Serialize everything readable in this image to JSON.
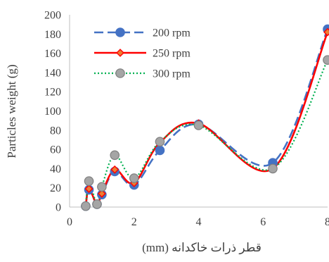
{
  "chart_data": {
    "type": "line",
    "title": "",
    "xlabel": "قطر ذرات خاکدانه (mm)",
    "ylabel": "Particles weight (g)",
    "xlim": [
      0,
      8
    ],
    "ylim": [
      0,
      200
    ],
    "xticks": [
      0,
      2,
      4,
      6,
      8
    ],
    "xtick_labels": [
      "0",
      "2",
      "4",
      "6",
      "8"
    ],
    "yticks": [
      0,
      20,
      40,
      60,
      80,
      100,
      120,
      140,
      160,
      180,
      200
    ],
    "ytick_labels": [
      "0",
      "20",
      "40",
      "60",
      "80",
      "100",
      "120",
      "140",
      "160",
      "180",
      "200"
    ],
    "grid": false,
    "legend_position": "top-left",
    "x": [
      0.5,
      0.6,
      0.85,
      1.0,
      1.4,
      2.0,
      2.8,
      4.0,
      6.3,
      8.0
    ],
    "series": [
      {
        "name": "200 rpm",
        "values": [
          1,
          18,
          3,
          13,
          37,
          23,
          59,
          86,
          46,
          185
        ],
        "color": "#4472C4",
        "line_style": "dashed",
        "marker": "circle",
        "marker_fill": "#4472C4",
        "marker_edge": "#4472C4"
      },
      {
        "name": "250 rpm",
        "values": [
          1,
          19,
          3,
          14,
          39,
          25,
          67,
          87,
          40,
          182
        ],
        "color": "#FF0000",
        "line_style": "solid",
        "marker": "diamond",
        "marker_fill": "#ED7D31",
        "marker_edge": "#FF0000"
      },
      {
        "name": "300 rpm",
        "values": [
          1,
          27,
          3,
          21,
          54,
          30,
          68,
          85,
          40,
          153
        ],
        "color": "#00B050",
        "line_style": "dotted",
        "marker": "circle",
        "marker_fill": "#A5A5A5",
        "marker_edge": "#7F7F7F"
      }
    ]
  }
}
